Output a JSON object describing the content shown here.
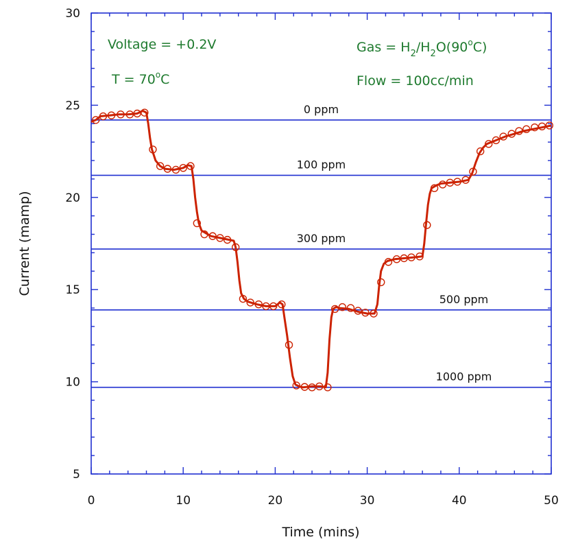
{
  "chart_data": {
    "type": "line",
    "title": "",
    "xlabel": "Time (mins)",
    "ylabel": "Current (mamp)",
    "xlim": [
      0,
      50
    ],
    "ylim": [
      5,
      30
    ],
    "x_ticks": [
      0,
      10,
      20,
      30,
      40,
      50
    ],
    "y_ticks": [
      5,
      10,
      15,
      20,
      25,
      30
    ],
    "grid": false,
    "colors": {
      "axes": "#1f2fd0",
      "series": "#cc2200",
      "reference_lines": "#1f2fd0",
      "annotations": "#1e7a2e"
    },
    "annotations": {
      "voltage": "Voltage = +0.2V",
      "temp_prefix": "T = 70",
      "temp_sup": "o",
      "temp_suffix": "C",
      "gas_prefix": "Gas = H",
      "gas_sub1": "2",
      "gas_mid": "/H",
      "gas_sub2": "2",
      "gas_after": "O(90",
      "gas_sup": "o",
      "gas_suffix": "C)",
      "flow": "Flow = 100cc/min"
    },
    "reference_lines": [
      {
        "label": "0 ppm",
        "y": 24.2,
        "label_x": 25
      },
      {
        "label": "100 ppm",
        "y": 21.2,
        "label_x": 25
      },
      {
        "label": "300 ppm",
        "y": 17.2,
        "label_x": 25
      },
      {
        "label": "500 ppm",
        "y": 13.9,
        "label_x": 40.5
      },
      {
        "label": "1000 ppm",
        "y": 9.7,
        "label_x": 40.5
      }
    ],
    "series": [
      {
        "x": [
          0,
          0.5,
          1,
          2,
          3,
          4,
          5,
          5.6,
          6,
          6.2,
          6.4,
          6.6,
          6.8,
          7,
          7.5,
          8,
          9,
          10,
          10.5,
          10.9,
          11.1,
          11.3,
          11.5,
          11.7,
          12,
          13,
          14,
          15,
          15.5,
          15.7,
          15.9,
          16.1,
          16.3,
          16.6,
          17,
          18,
          19,
          20,
          20.5,
          20.8,
          21,
          21.3,
          21.6,
          21.9,
          22.2,
          22.6,
          23,
          24,
          25,
          25.5,
          25.7,
          25.9,
          26.1,
          26.3,
          26.6,
          27,
          28,
          29,
          30,
          30.8,
          31.1,
          31.3,
          31.5,
          31.8,
          32.2,
          33,
          34,
          35,
          36,
          36.2,
          36.4,
          36.6,
          36.8,
          37,
          37.5,
          38,
          39,
          40,
          41,
          41.4,
          41.8,
          42.2,
          42.6,
          43,
          44,
          45,
          46,
          47,
          48,
          49,
          50
        ],
        "y": [
          24.1,
          24.2,
          24.4,
          24.45,
          24.5,
          24.5,
          24.55,
          24.7,
          24.6,
          24.0,
          23.2,
          22.6,
          22.3,
          22.0,
          21.7,
          21.55,
          21.5,
          21.6,
          21.75,
          21.7,
          21.0,
          20.0,
          19.2,
          18.6,
          18.2,
          17.9,
          17.8,
          17.7,
          17.65,
          17.3,
          16.5,
          15.5,
          14.8,
          14.5,
          14.35,
          14.2,
          14.1,
          14.1,
          14.3,
          14.2,
          13.5,
          12.5,
          11.3,
          10.3,
          9.85,
          9.75,
          9.7,
          9.75,
          9.75,
          9.7,
          10.5,
          12.3,
          13.5,
          13.95,
          14.05,
          14.0,
          13.95,
          13.8,
          13.7,
          13.7,
          14.2,
          15.2,
          16.0,
          16.4,
          16.55,
          16.65,
          16.7,
          16.75,
          16.8,
          17.5,
          18.6,
          19.6,
          20.2,
          20.5,
          20.65,
          20.75,
          20.8,
          20.85,
          20.95,
          21.3,
          21.9,
          22.4,
          22.7,
          22.9,
          23.1,
          23.3,
          23.45,
          23.6,
          23.7,
          23.8,
          23.9
        ]
      }
    ],
    "markers": {
      "x": [
        0.5,
        1.3,
        2.2,
        3.2,
        4.2,
        5,
        5.8,
        6.7,
        7.5,
        8.3,
        9.2,
        10,
        10.8,
        11.5,
        12.3,
        13.2,
        14,
        14.8,
        15.7,
        16.5,
        17.3,
        18.2,
        19,
        19.8,
        20.7,
        21.5,
        22.3,
        23.2,
        24,
        24.8,
        25.7,
        26.5,
        27.3,
        28.2,
        29,
        29.8,
        30.7,
        31.5,
        32.3,
        33.2,
        34,
        34.8,
        35.7,
        36.5,
        37.3,
        38.2,
        39,
        39.8,
        40.7,
        41.5,
        42.3,
        43.2,
        44,
        44.8,
        45.7,
        46.5,
        47.3,
        48.2,
        49,
        49.8
      ],
      "y": [
        24.2,
        24.4,
        24.45,
        24.5,
        24.5,
        24.55,
        24.6,
        22.6,
        21.7,
        21.55,
        21.5,
        21.6,
        21.7,
        18.6,
        18.0,
        17.9,
        17.8,
        17.7,
        17.3,
        14.5,
        14.3,
        14.2,
        14.1,
        14.1,
        14.2,
        12.0,
        9.8,
        9.72,
        9.7,
        9.75,
        9.7,
        13.95,
        14.05,
        14.0,
        13.85,
        13.75,
        13.7,
        15.4,
        16.5,
        16.65,
        16.7,
        16.75,
        16.8,
        18.5,
        20.5,
        20.7,
        20.8,
        20.85,
        20.95,
        21.4,
        22.5,
        22.9,
        23.1,
        23.3,
        23.45,
        23.6,
        23.7,
        23.8,
        23.85,
        23.9
      ]
    }
  }
}
